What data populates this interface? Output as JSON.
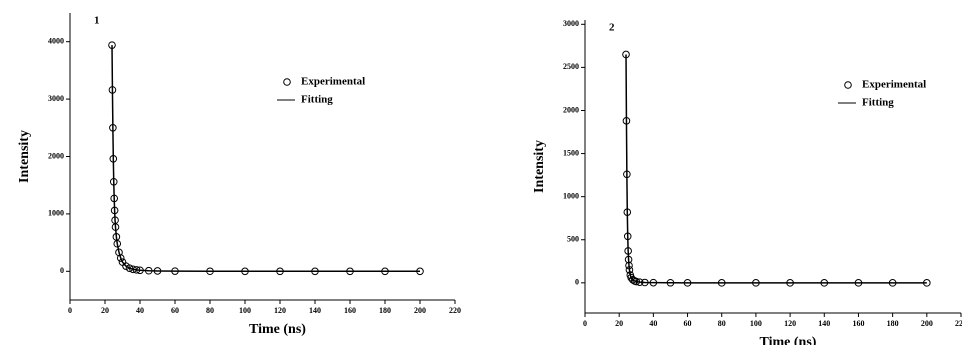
{
  "chart_data": [
    {
      "type": "line",
      "label": "1",
      "xlabel": "Time (ns)",
      "ylabel": "Intensity",
      "x": [
        24,
        24.25,
        24.5,
        24.75,
        25,
        25.25,
        25.5,
        25.75,
        26,
        26.5,
        27,
        28,
        29,
        30,
        32,
        34,
        36,
        38,
        40,
        45,
        50,
        60,
        80,
        100,
        120,
        140,
        160,
        180,
        200
      ],
      "series": [
        {
          "name": "Experimental",
          "type": "scatter",
          "color": "#000000",
          "values": [
            3940,
            3160,
            2500,
            1960,
            1560,
            1270,
            1060,
            890,
            770,
            600,
            480,
            330,
            230,
            160,
            90,
            55,
            35,
            25,
            18,
            10,
            6,
            3,
            1,
            0,
            0,
            0,
            0,
            0,
            0
          ]
        },
        {
          "name": "Fitting",
          "type": "line",
          "color": "#000000",
          "values": [
            3940,
            3160,
            2500,
            1960,
            1560,
            1270,
            1060,
            890,
            770,
            600,
            480,
            330,
            230,
            160,
            90,
            55,
            35,
            25,
            18,
            10,
            6,
            3,
            1,
            0,
            0,
            0,
            0,
            0,
            0
          ]
        }
      ],
      "xlim": [
        0,
        220
      ],
      "xticks": [
        0,
        20,
        40,
        60,
        80,
        100,
        120,
        140,
        160,
        180,
        200,
        220
      ],
      "ylim": [
        -500,
        4500
      ],
      "yticks": [
        0,
        1000,
        2000,
        3000,
        4000
      ],
      "legend": "upper right"
    },
    {
      "type": "line",
      "label": "2",
      "xlabel": "Time (ns)",
      "ylabel": "Intensity",
      "x": [
        24,
        24.25,
        24.5,
        24.75,
        25,
        25.25,
        25.5,
        25.75,
        26,
        26.5,
        27,
        28,
        29,
        30,
        32,
        35,
        40,
        50,
        60,
        80,
        100,
        120,
        140,
        160,
        180,
        200
      ],
      "series": [
        {
          "name": "Experimental",
          "type": "scatter",
          "color": "#000000",
          "values": [
            2650,
            1880,
            1260,
            820,
            540,
            370,
            270,
            200,
            150,
            90,
            60,
            35,
            22,
            15,
            8,
            4,
            2,
            1,
            0,
            0,
            0,
            0,
            0,
            0,
            0,
            0
          ]
        },
        {
          "name": "Fitting",
          "type": "line",
          "color": "#000000",
          "values": [
            2650,
            1880,
            1260,
            820,
            540,
            370,
            270,
            200,
            150,
            90,
            60,
            35,
            22,
            15,
            8,
            4,
            2,
            1,
            0,
            0,
            0,
            0,
            0,
            0,
            0,
            0
          ]
        }
      ],
      "xlim": [
        0,
        220
      ],
      "xticks": [
        0,
        20,
        40,
        60,
        80,
        100,
        120,
        140,
        160,
        180,
        200,
        220
      ],
      "ylim": [
        -350,
        3050
      ],
      "yticks": [
        0,
        500,
        1000,
        1500,
        2000,
        2500,
        3000
      ],
      "legend": "upper right"
    }
  ]
}
